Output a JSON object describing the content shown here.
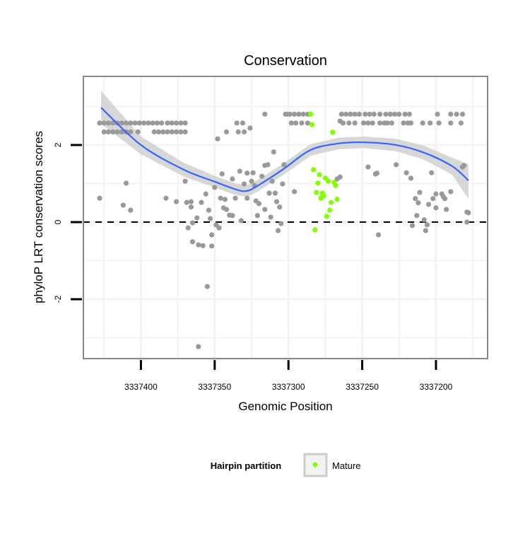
{
  "chart_data": {
    "type": "scatter",
    "title": "Conservation",
    "xlabel": "Genomic Position",
    "ylabel": "phyloP LRT conservation scores",
    "x_reversed": true,
    "xlim": [
      3337439,
      3337165
    ],
    "ylim": [
      -3.54,
      3.78
    ],
    "x_ticks": [
      3337400,
      3337350,
      3337300,
      3337250,
      3337200
    ],
    "x_tick_labels": [
      "3337400",
      "3337350",
      "3337300",
      "3337250",
      "3337200"
    ],
    "y_ticks": [
      2,
      0,
      -2
    ],
    "y_tick_labels": [
      "2",
      "0",
      "-2"
    ],
    "grid": true,
    "reference_line": {
      "y": 0,
      "style": "dashed"
    },
    "legend": {
      "title": "Hairpin partition",
      "placement": "bottom",
      "entries": [
        {
          "label": "Mature",
          "color": "#7FFF00"
        }
      ]
    },
    "colors": {
      "other": "#999999",
      "mature": "#7FFF00",
      "smooth": "#3366FF",
      "ribbon": "#D3D3D3"
    },
    "rows": [
      {
        "y": 2.57,
        "x": [
          3337428,
          3337425,
          3337422,
          3337419,
          3337416,
          3337413,
          3337410,
          3337407,
          3337404,
          3337401,
          3337398,
          3337395,
          3337392,
          3337389,
          3337386,
          3337382,
          3337379,
          3337376,
          3337373,
          3337370,
          3337335,
          3337331,
          3337298,
          3337295,
          3337291,
          3337287,
          3337263,
          3337259,
          3337255,
          3337249,
          3337246,
          3337243,
          3337238,
          3337235,
          3337233,
          3337230,
          3337222,
          3337219,
          3337217,
          3337209,
          3337204,
          3337198,
          3337190,
          3337183
        ]
      },
      {
        "y": 2.34,
        "x": [
          3337425,
          3337422,
          3337419,
          3337416,
          3337413,
          3337410,
          3337407,
          3337402,
          3337391,
          3337388,
          3337385,
          3337382,
          3337379,
          3337376,
          3337373,
          3337370,
          3337342,
          3337334,
          3337330
        ]
      },
      {
        "y": 2.8,
        "x": [
          3337316,
          3337301,
          3337302,
          3337299,
          3337296,
          3337293,
          3337290,
          3337287,
          3337264,
          3337261,
          3337258,
          3337255,
          3337252,
          3337248,
          3337245,
          3337242,
          3337238,
          3337234,
          3337231,
          3337228,
          3337225,
          3337221,
          3337218,
          3337199,
          3337190,
          3337186,
          3337182
        ]
      }
    ],
    "points": [
      [
        3337326,
        2.44
      ],
      [
        3337348,
        2.16
      ],
      [
        3337310,
        1.82
      ],
      [
        3337316,
        1.47
      ],
      [
        3337314,
        1.49
      ],
      [
        3337345,
        1.25
      ],
      [
        3337333,
        1.32
      ],
      [
        3337328,
        1.27
      ],
      [
        3337324,
        1.28
      ],
      [
        3337338,
        1.12
      ],
      [
        3337370,
        1.06
      ],
      [
        3337325,
        1.06
      ],
      [
        3337318,
        1.19
      ],
      [
        3337311,
        1.06
      ],
      [
        3337303,
        1.49
      ],
      [
        3337304,
        0.99
      ],
      [
        3337330,
        0.99
      ],
      [
        3337323,
        0.95
      ],
      [
        3337350,
        0.9
      ],
      [
        3337356,
        0.73
      ],
      [
        3337410,
        1.01
      ],
      [
        3337428,
        0.62
      ],
      [
        3337412,
        0.44
      ],
      [
        3337407,
        0.31
      ],
      [
        3337383,
        0.62
      ],
      [
        3337376,
        0.53
      ],
      [
        3337369,
        0.51
      ],
      [
        3337366,
        0.53
      ],
      [
        3337366,
        0.39
      ],
      [
        3337359,
        0.51
      ],
      [
        3337354,
        0.31
      ],
      [
        3337346,
        0.62
      ],
      [
        3337343,
        0.59
      ],
      [
        3337336,
        0.62
      ],
      [
        3337328,
        0.62
      ],
      [
        3337344,
        0.37
      ],
      [
        3337342,
        0.33
      ],
      [
        3337340,
        0.18
      ],
      [
        3337338,
        0.17
      ],
      [
        3337332,
        0.04
      ],
      [
        3337322,
        0.55
      ],
      [
        3337320,
        0.48
      ],
      [
        3337313,
        0.75
      ],
      [
        3337309,
        0.75
      ],
      [
        3337308,
        0.53
      ],
      [
        3337306,
        0.39
      ],
      [
        3337316,
        0.33
      ],
      [
        3337321,
        0.17
      ],
      [
        3337312,
        0.13
      ],
      [
        3337305,
        -0.04
      ],
      [
        3337307,
        -0.22
      ],
      [
        3337362,
        0.11
      ],
      [
        3337365,
        -0.02
      ],
      [
        3337368,
        -0.15
      ],
      [
        3337353,
        0.09
      ],
      [
        3337349,
        -0.07
      ],
      [
        3337347,
        -0.15
      ],
      [
        3337352,
        -0.33
      ],
      [
        3337365,
        -0.51
      ],
      [
        3337361,
        -0.59
      ],
      [
        3337358,
        -0.61
      ],
      [
        3337352,
        -0.62
      ],
      [
        3337355,
        -1.67
      ],
      [
        3337361,
        -3.23
      ],
      [
        3337265,
        2.62
      ],
      [
        3337246,
        1.43
      ],
      [
        3337240,
        1.27
      ],
      [
        3337241,
        1.25
      ],
      [
        3337227,
        1.49
      ],
      [
        3337220,
        1.28
      ],
      [
        3337217,
        1.14
      ],
      [
        3337203,
        1.28
      ],
      [
        3337181,
        1.47
      ],
      [
        3337182,
        1.43
      ],
      [
        3337296,
        0.79
      ],
      [
        3337265,
        1.17
      ],
      [
        3337267,
        1.12
      ],
      [
        3337211,
        0.77
      ],
      [
        3337214,
        0.61
      ],
      [
        3337212,
        0.5
      ],
      [
        3337205,
        0.46
      ],
      [
        3337202,
        0.61
      ],
      [
        3337200,
        0.73
      ],
      [
        3337196,
        0.73
      ],
      [
        3337194,
        0.61
      ],
      [
        3337195,
        0.66
      ],
      [
        3337190,
        0.79
      ],
      [
        3337200,
        0.37
      ],
      [
        3337193,
        0.33
      ],
      [
        3337213,
        0.17
      ],
      [
        3337216,
        -0.09
      ],
      [
        3337208,
        0.06
      ],
      [
        3337206,
        -0.07
      ],
      [
        3337207,
        -0.22
      ],
      [
        3337239,
        -0.33
      ],
      [
        3337179,
        0.26
      ],
      [
        3337178,
        0.24
      ],
      [
        3337179,
        0.0
      ]
    ],
    "mature_points": [
      [
        3337285,
        2.8
      ],
      [
        3337284,
        2.53
      ],
      [
        3337270,
        2.33
      ],
      [
        3337283,
        1.36
      ],
      [
        3337279,
        1.23
      ],
      [
        3337275,
        1.14
      ],
      [
        3337273,
        1.06
      ],
      [
        3337280,
        1.01
      ],
      [
        3337269,
        1.03
      ],
      [
        3337268,
        0.95
      ],
      [
        3337281,
        0.77
      ],
      [
        3337277,
        0.75
      ],
      [
        3337276,
        0.68
      ],
      [
        3337278,
        0.62
      ],
      [
        3337271,
        0.51
      ],
      [
        3337267,
        0.59
      ],
      [
        3337272,
        0.31
      ],
      [
        3337274,
        0.15
      ],
      [
        3337282,
        -0.2
      ]
    ],
    "smooth": {
      "x": [
        3337427,
        3337400,
        3337371,
        3337350,
        3337335,
        3337328,
        3337321,
        3337304,
        3337285,
        3337266,
        3337249,
        3337227,
        3337208,
        3337189,
        3337178
      ],
      "y": [
        2.97,
        2.0,
        1.36,
        1.05,
        0.84,
        0.81,
        0.94,
        1.36,
        1.87,
        2.04,
        2.07,
        2.0,
        1.8,
        1.45,
        1.08
      ],
      "lo": [
        2.55,
        1.76,
        1.18,
        0.9,
        0.69,
        0.66,
        0.79,
        1.21,
        1.72,
        1.89,
        1.92,
        1.84,
        1.62,
        1.23,
        0.6
      ],
      "hi": [
        3.41,
        2.22,
        1.54,
        1.2,
        0.99,
        0.96,
        1.09,
        1.51,
        2.02,
        2.19,
        2.22,
        2.16,
        1.98,
        1.67,
        1.5
      ]
    }
  }
}
